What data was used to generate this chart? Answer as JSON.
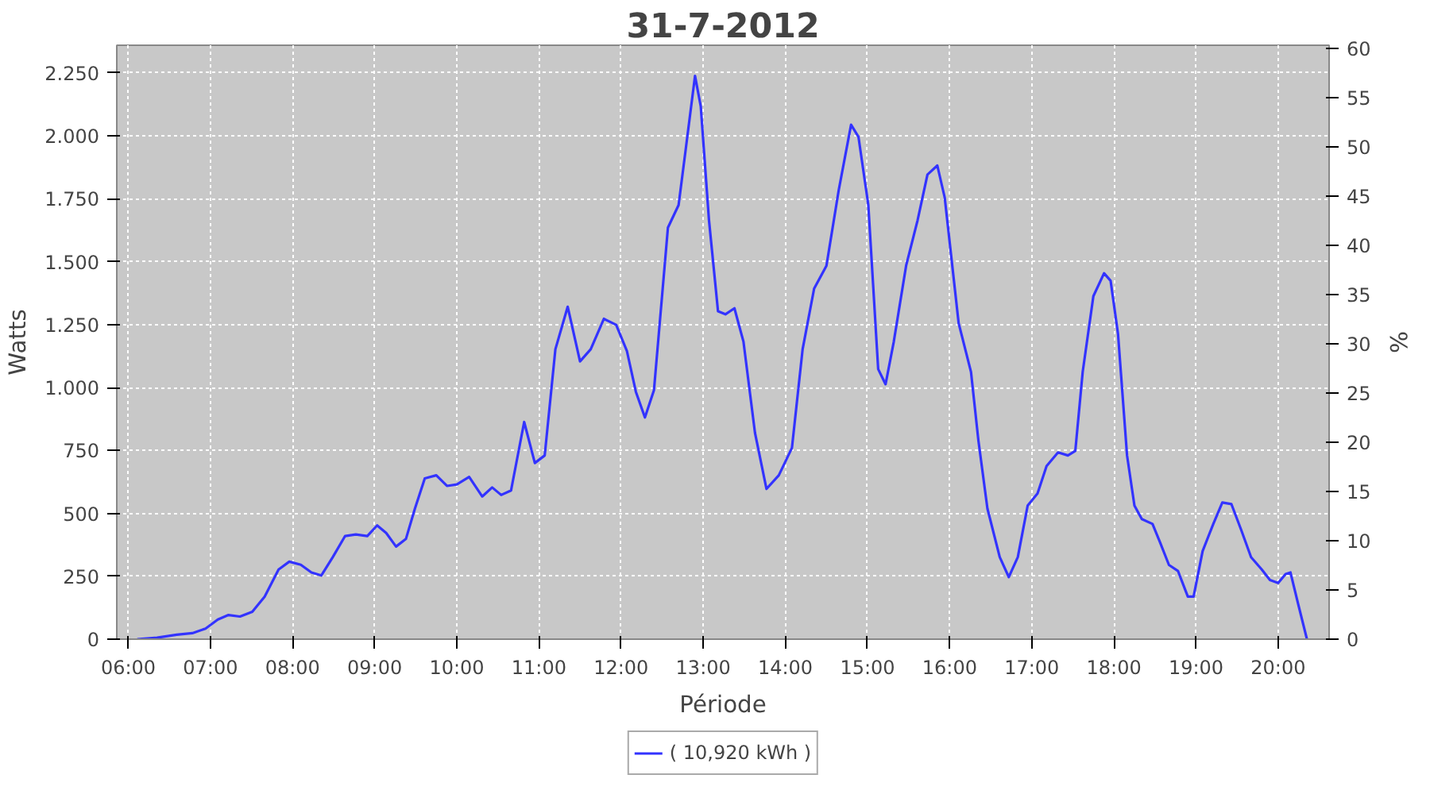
{
  "chart_data": {
    "type": "line",
    "title": "31-7-2012",
    "xlabel": "Période",
    "ylabel": "Watts",
    "y2label": "%",
    "xlim": [
      5.86,
      20.62
    ],
    "xticks": [
      {
        "value": 6,
        "label": "06:00"
      },
      {
        "value": 7,
        "label": "07:00"
      },
      {
        "value": 8,
        "label": "08:00"
      },
      {
        "value": 9,
        "label": "09:00"
      },
      {
        "value": 10,
        "label": "10:00"
      },
      {
        "value": 11,
        "label": "11:00"
      },
      {
        "value": 12,
        "label": "12:00"
      },
      {
        "value": 13,
        "label": "13:00"
      },
      {
        "value": 14,
        "label": "14:00"
      },
      {
        "value": 15,
        "label": "15:00"
      },
      {
        "value": 16,
        "label": "16:00"
      },
      {
        "value": 17,
        "label": "17:00"
      },
      {
        "value": 18,
        "label": "18:00"
      },
      {
        "value": 19,
        "label": "19:00"
      },
      {
        "value": 20,
        "label": "20:00"
      }
    ],
    "ylim": [
      0,
      2360
    ],
    "yticks": [
      0,
      250,
      500,
      750,
      {
        "value": 1000,
        "label": "1.000"
      },
      {
        "value": 1250,
        "label": "1.250"
      },
      {
        "value": 1500,
        "label": "1.500"
      },
      {
        "value": 1750,
        "label": "1.750"
      },
      {
        "value": 2000,
        "label": "2.000"
      },
      {
        "value": 2250,
        "label": "2.250"
      }
    ],
    "y2lim": [
      0,
      60.3
    ],
    "y2ticks": [
      0,
      5,
      10,
      15,
      20,
      25,
      30,
      35,
      40,
      45,
      50,
      55,
      60
    ],
    "grid": true,
    "legend": "bottom",
    "line_style": "solid",
    "marker": "none",
    "x": [
      6.11,
      6.35,
      6.59,
      6.78,
      6.94,
      7.09,
      7.22,
      7.36,
      7.51,
      7.66,
      7.83,
      7.96,
      8.1,
      8.23,
      8.35,
      8.49,
      8.64,
      8.77,
      8.91,
      9.03,
      9.14,
      9.26,
      9.38,
      9.49,
      9.61,
      9.75,
      9.88,
      10.0,
      10.15,
      10.31,
      10.43,
      10.54,
      10.66,
      10.82,
      10.95,
      11.07,
      11.2,
      11.35,
      11.5,
      11.63,
      11.79,
      11.94,
      12.07,
      12.18,
      12.29,
      12.4,
      12.57,
      12.7,
      12.79,
      12.9,
      12.97,
      13.07,
      13.18,
      13.27,
      13.38,
      13.49,
      13.63,
      13.77,
      13.92,
      14.08,
      14.21,
      14.35,
      14.5,
      14.65,
      14.8,
      14.89,
      15.01,
      15.13,
      15.22,
      15.32,
      15.47,
      15.61,
      15.73,
      15.85,
      15.94,
      16.11,
      16.26,
      16.35,
      16.46,
      16.61,
      16.72,
      16.83,
      16.95,
      17.07,
      17.18,
      17.32,
      17.44,
      17.53,
      17.62,
      17.75,
      17.88,
      17.96,
      18.05,
      18.16,
      18.25,
      18.34,
      18.47,
      18.56,
      18.67,
      18.78,
      18.9,
      18.97,
      19.08,
      19.21,
      19.32,
      19.43,
      19.55,
      19.67,
      19.8,
      19.9,
      20.0,
      20.09,
      20.15,
      20.23,
      20.35
    ],
    "series": [
      {
        "name": "( 10,920 kWh )",
        "color": "#3333ff",
        "values": [
          0,
          6,
          18,
          24,
          42,
          78,
          96,
          90,
          109,
          169,
          277,
          308,
          296,
          265,
          253,
          326,
          410,
          416,
          410,
          452,
          422,
          368,
          398,
          519,
          639,
          651,
          609,
          615,
          645,
          567,
          603,
          573,
          591,
          863,
          700,
          730,
          1152,
          1321,
          1104,
          1152,
          1273,
          1249,
          1146,
          983,
          881,
          989,
          1635,
          1725,
          1955,
          2238,
          2117,
          1665,
          1303,
          1291,
          1315,
          1182,
          820,
          597,
          651,
          760,
          1152,
          1393,
          1484,
          1785,
          2044,
          1996,
          1725,
          1073,
          1013,
          1182,
          1484,
          1665,
          1846,
          1882,
          1755,
          1255,
          1062,
          790,
          519,
          326,
          247,
          326,
          531,
          579,
          688,
          742,
          730,
          748,
          1062,
          1363,
          1454,
          1424,
          1213,
          730,
          531,
          477,
          458,
          386,
          295,
          271,
          169,
          169,
          350,
          458,
          543,
          537,
          434,
          326,
          277,
          235,
          223,
          259,
          265,
          157,
          0
        ]
      }
    ]
  }
}
